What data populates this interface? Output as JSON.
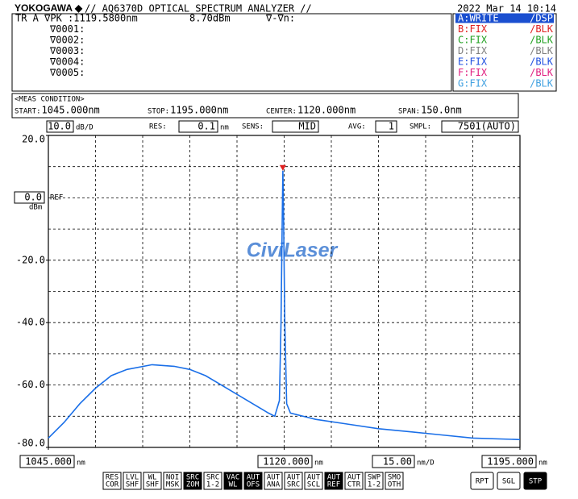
{
  "header": {
    "brand": "YOKOGAWA ◆",
    "title": "// AQ6370D OPTICAL SPECTRUM ANALYZER //",
    "datetime": "2022 Mar 14 10:14"
  },
  "marker": {
    "trace": "TR A ∇PK",
    "wavelength": ":1119.5800nm",
    "level": "8.70dBm",
    "delta": "∇-∇n:",
    "points": [
      "∇0001:",
      "∇0002:",
      "∇0003:",
      "∇0004:",
      "∇0005:"
    ]
  },
  "traces": [
    {
      "name": "A:WRITE",
      "mode": "/DSP",
      "color": "#ffffff",
      "active": true
    },
    {
      "name": "B:FIX",
      "mode": "/BLK",
      "color": "#e02020",
      "active": false
    },
    {
      "name": "C:FIX",
      "mode": "/BLK",
      "color": "#20a020",
      "active": false
    },
    {
      "name": "D:FIX",
      "mode": "/BLK",
      "color": "#808080",
      "active": false
    },
    {
      "name": "E:FIX",
      "mode": "/BLK",
      "color": "#2050e0",
      "active": false
    },
    {
      "name": "F:FIX",
      "mode": "/BLK",
      "color": "#e02080",
      "active": false
    },
    {
      "name": "G:FIX",
      "mode": "/BLK",
      "color": "#40a0e0",
      "active": false
    }
  ],
  "meas": {
    "heading": "<MEAS CONDITION>",
    "items": [
      {
        "label": "START:",
        "value": "1045.000nm"
      },
      {
        "label": "STOP:",
        "value": "1195.000nm"
      },
      {
        "label": "CENTER:",
        "value": "1120.000nm"
      },
      {
        "label": "SPAN:",
        "value": " 150.0nm"
      }
    ]
  },
  "settings": [
    {
      "value": "10.0",
      "unit": "dB/D"
    },
    {
      "label": "RES:",
      "value": "0.1",
      "unit": "nm"
    },
    {
      "label": "SENS:",
      "value": "MID"
    },
    {
      "label": "AVG:",
      "value": "1"
    },
    {
      "label": "SMPL:",
      "value": "7501(AUTO)"
    }
  ],
  "ref": {
    "value": "0.0",
    "label": "REF",
    "unit": "dBm"
  },
  "watermark": "CiviLaser",
  "chart_data": {
    "type": "line",
    "x": [
      1045,
      1050,
      1055,
      1060,
      1065,
      1070,
      1078,
      1085,
      1090,
      1095,
      1100,
      1105,
      1110,
      1115,
      1117,
      1118.5,
      1119,
      1119.4,
      1119.58,
      1119.8,
      1120.2,
      1120.8,
      1122,
      1130,
      1140,
      1150,
      1160,
      1170,
      1180,
      1195
    ],
    "values": [
      -77,
      -72,
      -66,
      -61,
      -57,
      -55,
      -53.5,
      -54,
      -55,
      -57,
      -60,
      -63,
      -66,
      -69,
      -70,
      -65,
      -40,
      -5,
      8.7,
      -5,
      -40,
      -66,
      -69,
      -71,
      -72.5,
      -74,
      -75,
      -76,
      -77,
      -77.5
    ],
    "color": "#1a6fe8",
    "xlim": [
      1045,
      1195
    ],
    "ylim": [
      -80,
      20
    ],
    "xticks": [
      {
        "value": 1045,
        "label": "1045.000"
      },
      {
        "value": 1120,
        "label": "1120.000"
      },
      {
        "value": 1195,
        "label": "1195.000"
      }
    ],
    "x_unit": "nm",
    "x_scale": {
      "value": "15.00",
      "unit": "nm/D"
    },
    "yticks": [
      {
        "value": 20,
        "label": "20.0"
      },
      {
        "value": -20,
        "label": "-20.0"
      },
      {
        "value": -40,
        "label": "-40.0"
      },
      {
        "value": -60,
        "label": "-60.0"
      },
      {
        "value": -80,
        "label": "-80.0"
      }
    ],
    "xgrid": [
      1060,
      1075,
      1090,
      1105,
      1120,
      1135,
      1150,
      1165,
      1180
    ],
    "ygrid": [
      10,
      0,
      -10,
      -20,
      -30,
      -40,
      -50,
      -60,
      -70
    ],
    "grid": true
  },
  "buttons": [
    {
      "text": [
        "RES",
        "COR"
      ],
      "active": false
    },
    {
      "text": [
        "LVL",
        "SHF"
      ],
      "active": false
    },
    {
      "text": [
        "WL",
        "SHF"
      ],
      "active": false
    },
    {
      "text": [
        "NOI",
        "MSK"
      ],
      "active": false
    },
    {
      "text": [
        "SRC",
        "ZOM"
      ],
      "active": true
    },
    {
      "text": [
        "SRC",
        "1-2"
      ],
      "active": false
    },
    {
      "text": [
        "VAC",
        "WL"
      ],
      "active": true
    },
    {
      "text": [
        "AUT",
        "OFS"
      ],
      "active": true
    },
    {
      "text": [
        "AUT",
        "ANA"
      ],
      "active": false
    },
    {
      "text": [
        "AUT",
        "SRC"
      ],
      "active": false
    },
    {
      "text": [
        "AUT",
        "SCL"
      ],
      "active": false
    },
    {
      "text": [
        "AUT",
        "REF"
      ],
      "active": true
    },
    {
      "text": [
        "AUT",
        "CTR"
      ],
      "active": false
    },
    {
      "text": [
        "SWP",
        "1-2"
      ],
      "active": false
    },
    {
      "text": [
        "SMO",
        "OTH"
      ],
      "active": false
    }
  ],
  "run_buttons": [
    {
      "text": "RPT",
      "active": false
    },
    {
      "text": "SGL",
      "active": false
    },
    {
      "text": "STP",
      "active": true
    }
  ]
}
